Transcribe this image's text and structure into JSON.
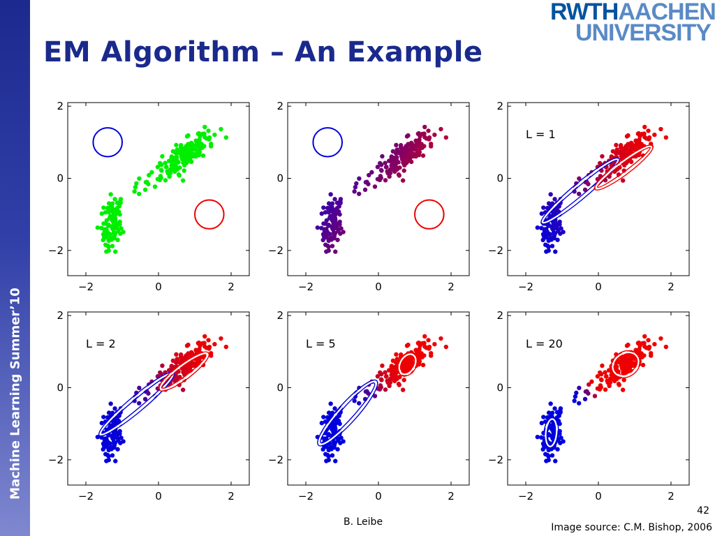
{
  "slide": {
    "title": "EM Algorithm – An Example",
    "sidebar_text": "Machine Learning Summer’10",
    "logo_line1_part1": "RWTH",
    "logo_line1_part2": "AACHEN",
    "logo_line2": "UNIVERSITY",
    "author": "B. Leibe",
    "image_source": "Image source: C.M. Bishop, 2006",
    "page_number": "42"
  },
  "colors": {
    "title": "#1a2a8c",
    "green": "#00ee00",
    "blue": "#0000dd",
    "red": "#ee0000"
  },
  "chart_data": [
    {
      "type": "scatter",
      "panel": "initial",
      "label": "",
      "xlim": [
        -2.5,
        2.5
      ],
      "ylim": [
        -2.7,
        2.1
      ],
      "xticks": [
        "−2",
        "0",
        "2"
      ],
      "yticks": [
        "2",
        "0",
        "−2"
      ],
      "point_coloring": "green",
      "ellipses": [
        {
          "color": "#0000dd",
          "cx": -1.4,
          "cy": 1.0,
          "sx": 0.4,
          "sy": 0.4,
          "angle": 0
        },
        {
          "color": "#ee0000",
          "cx": 1.4,
          "cy": -1.0,
          "sx": 0.4,
          "sy": 0.4,
          "angle": 0
        }
      ]
    },
    {
      "type": "scatter",
      "panel": "E-step",
      "label": "",
      "xlim": [
        -2.5,
        2.5
      ],
      "ylim": [
        -2.7,
        2.1
      ],
      "xticks": [
        "−2",
        "0",
        "2"
      ],
      "yticks": [
        "2",
        "0",
        "−2"
      ],
      "point_coloring": "responsibility-initial",
      "ellipses": [
        {
          "color": "#0000dd",
          "cx": -1.4,
          "cy": 1.0,
          "sx": 0.4,
          "sy": 0.4,
          "angle": 0
        },
        {
          "color": "#ee0000",
          "cx": 1.4,
          "cy": -1.0,
          "sx": 0.4,
          "sy": 0.4,
          "angle": 0
        }
      ]
    },
    {
      "type": "scatter",
      "panel": "L1",
      "label": "L = 1",
      "xlim": [
        -2.5,
        2.5
      ],
      "ylim": [
        -2.7,
        2.1
      ],
      "xticks": [
        "−2",
        "0",
        "2"
      ],
      "yticks": [
        "2",
        "0",
        "−2"
      ],
      "point_coloring": "responsibility-L1",
      "ellipses": [
        {
          "color": "#0000dd",
          "cx": -0.5,
          "cy": -0.35,
          "sx": 1.35,
          "sy": 0.17,
          "angle": 40
        },
        {
          "color": "#ee0000",
          "cx": 0.7,
          "cy": 0.3,
          "sx": 0.95,
          "sy": 0.15,
          "angle": 37
        }
      ]
    },
    {
      "type": "scatter",
      "panel": "L2",
      "label": "L = 2",
      "xlim": [
        -2.5,
        2.5
      ],
      "ylim": [
        -2.7,
        2.1
      ],
      "xticks": [
        "−2",
        "0",
        "2"
      ],
      "yticks": [
        "2",
        "0",
        "−2"
      ],
      "point_coloring": "responsibility-L2",
      "ellipses": [
        {
          "color": "#0000dd",
          "cx": -0.6,
          "cy": -0.45,
          "sx": 1.3,
          "sy": 0.17,
          "angle": 40
        },
        {
          "color": "#ee0000",
          "cx": 0.7,
          "cy": 0.45,
          "sx": 0.8,
          "sy": 0.17,
          "angle": 37
        }
      ]
    },
    {
      "type": "scatter",
      "panel": "L5",
      "label": "L = 5",
      "xlim": [
        -2.5,
        2.5
      ],
      "ylim": [
        -2.7,
        2.1
      ],
      "xticks": [
        "−2",
        "0",
        "2"
      ],
      "yticks": [
        "2",
        "0",
        "−2"
      ],
      "point_coloring": "responsibility-L5",
      "ellipses": [
        {
          "color": "#0000dd",
          "cx": -0.85,
          "cy": -0.7,
          "sx": 1.15,
          "sy": 0.22,
          "angle": 48
        },
        {
          "color": "#ee0000",
          "cx": 0.8,
          "cy": 0.65,
          "sx": 0.3,
          "sy": 0.2,
          "angle": 60
        }
      ]
    },
    {
      "type": "scatter",
      "panel": "L20",
      "label": "L = 20",
      "xlim": [
        -2.5,
        2.5
      ],
      "ylim": [
        -2.7,
        2.1
      ],
      "xticks": [
        "−2",
        "0",
        "2"
      ],
      "yticks": [
        "2",
        "0",
        "−2"
      ],
      "point_coloring": "responsibility-L20",
      "ellipses": [
        {
          "color": "#0000dd",
          "cx": -1.3,
          "cy": -1.25,
          "sx": 0.38,
          "sy": 0.15,
          "angle": 85
        },
        {
          "color": "#ee0000",
          "cx": 0.75,
          "cy": 0.65,
          "sx": 0.38,
          "sy": 0.3,
          "angle": 35
        }
      ]
    }
  ]
}
